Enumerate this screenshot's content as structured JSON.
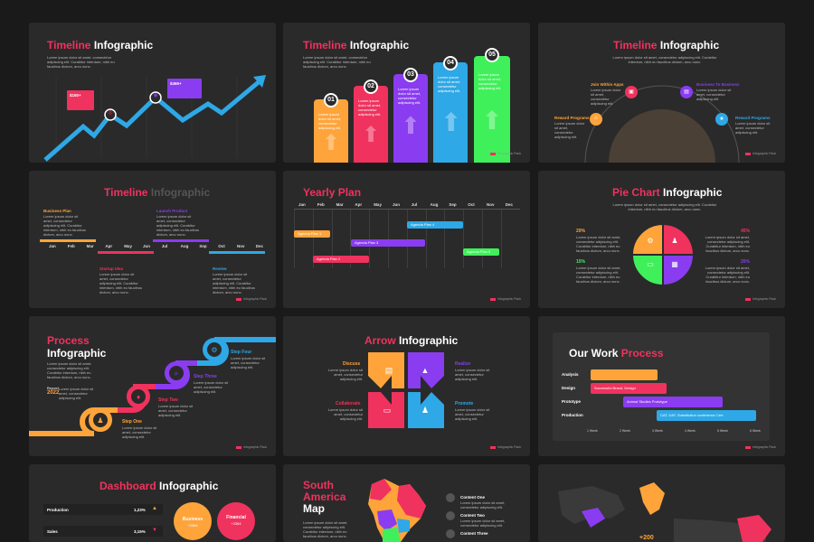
{
  "lorem_short": "Lorem ipsum dolor sit amet, consectetur adipiscing elit. Curabitur interdum, nibh eu faucibus dictum, arcu nunc.",
  "lorem_line": "Lorem ipsum dolor sit amet, consectetur adipiscing elit.",
  "footer_brand": "Infographic Pack",
  "colors": {
    "pink": "#f0325e",
    "orange": "#ffa43a",
    "purple": "#8a3cf0",
    "blue": "#2ea8e6",
    "green": "#3ff05a",
    "bg": "#2a2a2a"
  },
  "s1": {
    "t1": "Timeline",
    "t2": "Infographic",
    "callout1": "$150+",
    "callout2": "$465+"
  },
  "s2": {
    "t1": "Timeline",
    "t2": "Infographic",
    "cols": [
      {
        "n": "01"
      },
      {
        "n": "02"
      },
      {
        "n": "03"
      },
      {
        "n": "04"
      },
      {
        "n": "05"
      }
    ]
  },
  "s3": {
    "t1": "Timeline",
    "t2": "Infographic",
    "items": [
      "Join Within Apps",
      "Reward Programs",
      "Business To Business",
      "Reward Programs"
    ]
  },
  "s4": {
    "t1": "Timeline",
    "t2": "Infographic",
    "months": [
      "Jan",
      "Feb",
      "Mar",
      "Apr",
      "May",
      "Jun",
      "Jul",
      "Aug",
      "Sep",
      "Oct",
      "Nov",
      "Dec"
    ],
    "top": [
      "Business Plan",
      "Launch Product"
    ],
    "bottom": [
      "Startup Idea",
      "Review"
    ]
  },
  "s5": {
    "t1": "Yearly Plan",
    "months": [
      "Jan",
      "Feb",
      "Mar",
      "Apr",
      "May",
      "Jun",
      "Jul",
      "Aug",
      "Sep",
      "Oct",
      "Nov",
      "Dec"
    ],
    "plans": [
      "Agenda Plan 4",
      "Agenda Plan 1",
      "Agenda Plan 3",
      "Agenda Plan 5",
      "Agenda Plan 2"
    ]
  },
  "s6": {
    "t1": "Pie Chart",
    "t2": "Infographic",
    "pcts": [
      "20%",
      "45%",
      "15%",
      "20%"
    ]
  },
  "s7": {
    "t1": "Process",
    "t2": "Infographic",
    "steps": [
      "Step Four",
      "Step Three",
      "Step Two",
      "Step One"
    ],
    "year_label": "Report",
    "year": "2022"
  },
  "s8": {
    "t1": "Arrow",
    "t2": "Infographic",
    "items": [
      "Discuss",
      "Realize",
      "Collaborate",
      "Promote"
    ]
  },
  "s9": {
    "t1": "Our Work",
    "t2": "Process",
    "rows": [
      "Analysis",
      "Design",
      "Prototype",
      "Production"
    ],
    "bar2": "Successful Brand, Design",
    "bar3": "Animal Studies Prototype",
    "bar4": "CAT, DAT, Substitution conference Cert",
    "weeks": [
      "1 Week",
      "2 Week",
      "3 Week",
      "4 Week",
      "5 Week",
      "6 Week"
    ]
  },
  "s10": {
    "t1": "Dashboard",
    "t2": "Infographic",
    "rows": [
      {
        "label": "Production",
        "val": "1,23%"
      },
      {
        "label": "Sales",
        "val": "3,15%"
      }
    ],
    "c1": "Business",
    "c1v": "+2364",
    "c2": "Financial",
    "c2v": "+2364"
  },
  "s11": {
    "t1": "South",
    "t2": "America",
    "t3": "Map",
    "items": [
      "Content One",
      "Content Two",
      "Content Three"
    ]
  },
  "s12": {
    "val": "+200"
  }
}
